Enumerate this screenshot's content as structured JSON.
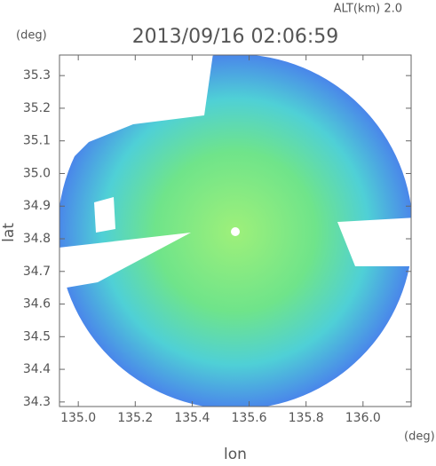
{
  "chart_data": {
    "type": "radar-map",
    "title": "2013/09/16 02:06:59",
    "altitude_label": "ALT(km) 2.0",
    "y_unit": "(deg)",
    "x_unit": "(deg)",
    "xlabel": "lon",
    "ylabel": "lat",
    "xlim": [
      134.934,
      136.169
    ],
    "ylim": [
      34.286,
      35.363
    ],
    "xticks": [
      {
        "value": 135.0,
        "label": "135.0"
      },
      135.2,
      135.4,
      135.6,
      135.8,
      {
        "value": 136.0,
        "label": "136.0"
      }
    ],
    "yticks": [
      35.3,
      35.2,
      35.1,
      {
        "value": 35.0,
        "label": "35.0"
      },
      34.9,
      34.8,
      34.7,
      34.6,
      34.5,
      34.4,
      34.3
    ]
  }
}
